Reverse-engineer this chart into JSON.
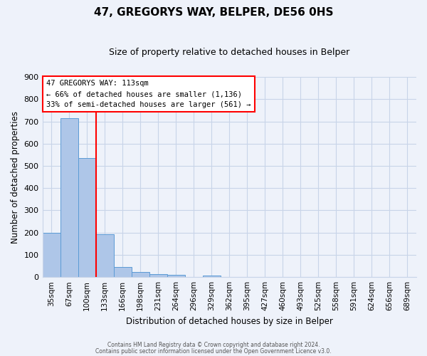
{
  "title": "47, GREGORYS WAY, BELPER, DE56 0HS",
  "subtitle": "Size of property relative to detached houses in Belper",
  "xlabel": "Distribution of detached houses by size in Belper",
  "ylabel": "Number of detached properties",
  "bin_labels": [
    "35sqm",
    "67sqm",
    "100sqm",
    "133sqm",
    "166sqm",
    "198sqm",
    "231sqm",
    "264sqm",
    "296sqm",
    "329sqm",
    "362sqm",
    "395sqm",
    "427sqm",
    "460sqm",
    "493sqm",
    "525sqm",
    "558sqm",
    "591sqm",
    "624sqm",
    "656sqm",
    "689sqm"
  ],
  "bar_values": [
    200,
    715,
    535,
    193,
    46,
    22,
    13,
    10,
    0,
    8,
    0,
    0,
    0,
    0,
    0,
    0,
    0,
    0,
    0,
    0,
    0
  ],
  "bar_color": "#aec6e8",
  "bar_edgecolor": "#5b9bd5",
  "vline_pos": 2.5,
  "vline_color": "red",
  "ylim": [
    0,
    900
  ],
  "yticks": [
    0,
    100,
    200,
    300,
    400,
    500,
    600,
    700,
    800,
    900
  ],
  "annotation_text": "47 GREGORYS WAY: 113sqm\n← 66% of detached houses are smaller (1,136)\n33% of semi-detached houses are larger (561) →",
  "annotation_box_edgecolor": "red",
  "footer_line1": "Contains HM Land Registry data © Crown copyright and database right 2024.",
  "footer_line2": "Contains public sector information licensed under the Open Government Licence v3.0.",
  "background_color": "#eef2fa",
  "grid_color": "#c8d4e8"
}
